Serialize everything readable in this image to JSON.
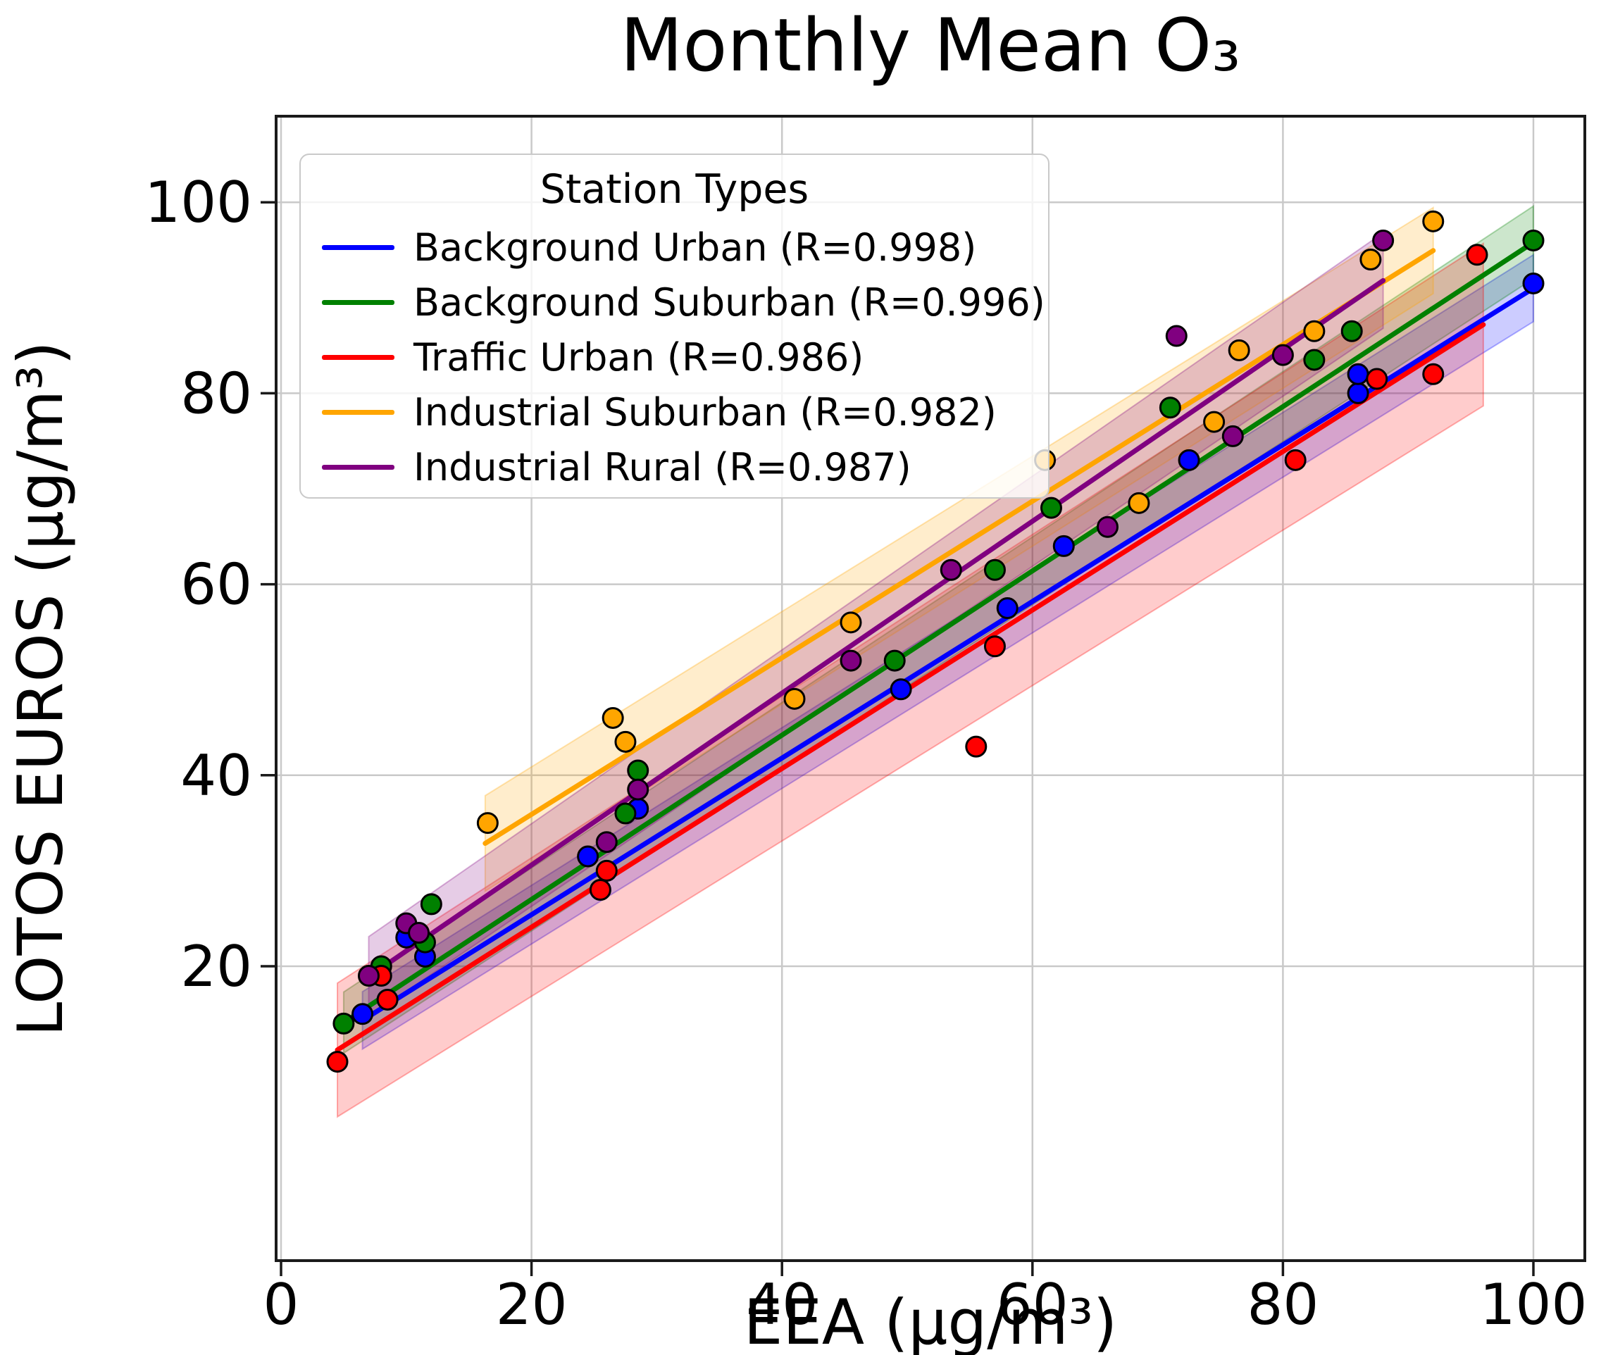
{
  "title": "Monthly Mean O₃",
  "axes": {
    "x": {
      "label": "EEA (µg/m³)",
      "ticks": [
        0,
        20,
        40,
        60,
        80,
        100
      ],
      "min": -0.4,
      "max": 104.1
    },
    "y": {
      "label": "LOTOS EUROS (µg/m³)",
      "ticks": [
        20,
        40,
        60,
        80,
        100
      ],
      "min": -10.8,
      "max": 109.0
    }
  },
  "legend": {
    "title": "Station Types",
    "items": [
      {
        "label": "Background Urban (R=0.998)",
        "color": "#0000ff"
      },
      {
        "label": "Background Suburban (R=0.996)",
        "color": "#008000"
      },
      {
        "label": "Traffic Urban (R=0.986)",
        "color": "#ff0000"
      },
      {
        "label": "Industrial Suburban (R=0.982)",
        "color": "#ffa500"
      },
      {
        "label": "Industrial Rural (R=0.987)",
        "color": "#800080"
      }
    ]
  },
  "style": {
    "grid_color": "#c9c9c9",
    "spine_color": "#1a1a1a",
    "point_edge_color": "#000000",
    "band_opacity": 0.2,
    "point_radius": 14,
    "line_width": 7
  },
  "chart_data": {
    "type": "scatter",
    "title": "Monthly Mean O₃",
    "xlabel": "EEA (µg/m³)",
    "ylabel": "LOTOS EUROS (µg/m³)",
    "xlim": [
      -0.4,
      104.1
    ],
    "ylim": [
      -10.8,
      109.0
    ],
    "grid": true,
    "legend_position": "upper left",
    "legend_title": "Station Types",
    "series": [
      {
        "name": "Background Urban",
        "R": 0.998,
        "color": "#0000ff",
        "points": [
          [
            6.5,
            15
          ],
          [
            10,
            23
          ],
          [
            11.5,
            21
          ],
          [
            24.5,
            31.5
          ],
          [
            28.5,
            36.5
          ],
          [
            49.5,
            49
          ],
          [
            58,
            57.5
          ],
          [
            62.5,
            64
          ],
          [
            72.5,
            73
          ],
          [
            86,
            80
          ],
          [
            86,
            82
          ],
          [
            100,
            91.5
          ]
        ],
        "regression": {
          "slope": 0.82,
          "intercept": 9.0,
          "x_start": 6.5,
          "x_end": 100,
          "band_left": 3.0,
          "band_right": 3.5
        }
      },
      {
        "name": "Background Suburban",
        "R": 0.996,
        "color": "#008000",
        "points": [
          [
            5,
            14
          ],
          [
            8,
            20
          ],
          [
            11.5,
            22.5
          ],
          [
            12,
            26.5
          ],
          [
            27.5,
            36
          ],
          [
            28.5,
            40.5
          ],
          [
            49,
            52
          ],
          [
            57,
            61.5
          ],
          [
            61.5,
            68
          ],
          [
            71,
            78.5
          ],
          [
            82.5,
            83.5
          ],
          [
            85.5,
            86.5
          ],
          [
            100,
            96
          ]
        ],
        "regression": {
          "slope": 0.86,
          "intercept": 9.8,
          "x_start": 5,
          "x_end": 100,
          "band_left": 3.2,
          "band_right": 3.8
        }
      },
      {
        "name": "Traffic Urban",
        "R": 0.986,
        "color": "#ff0000",
        "points": [
          [
            4.5,
            10
          ],
          [
            8,
            19
          ],
          [
            8.5,
            16.5
          ],
          [
            25.5,
            28
          ],
          [
            26,
            30
          ],
          [
            55.5,
            43
          ],
          [
            57,
            53.5
          ],
          [
            81,
            73
          ],
          [
            87.5,
            81.5
          ],
          [
            92,
            82
          ],
          [
            95.5,
            94.5
          ]
        ],
        "regression": {
          "slope": 0.83,
          "intercept": 7.5,
          "x_start": 4.5,
          "x_end": 96,
          "band_left": 7.0,
          "band_right": 8.5
        }
      },
      {
        "name": "Industrial Suburban",
        "R": 0.982,
        "color": "#ffa500",
        "points": [
          [
            16.5,
            35
          ],
          [
            26.5,
            46
          ],
          [
            27.5,
            43.5
          ],
          [
            41,
            48
          ],
          [
            45.5,
            56
          ],
          [
            61,
            73
          ],
          [
            68.5,
            68.5
          ],
          [
            74.5,
            77
          ],
          [
            76.5,
            84.5
          ],
          [
            82.5,
            86.5
          ],
          [
            87,
            94
          ],
          [
            92,
            98
          ]
        ],
        "regression": {
          "slope": 0.82,
          "intercept": 19.5,
          "x_start": 16.3,
          "x_end": 92,
          "band_left": 5.0,
          "band_right": 4.5
        }
      },
      {
        "name": "Industrial Rural",
        "R": 0.987,
        "color": "#800080",
        "points": [
          [
            7,
            19
          ],
          [
            10,
            24.5
          ],
          [
            11,
            23.5
          ],
          [
            26,
            33
          ],
          [
            28.5,
            38.5
          ],
          [
            45.5,
            52
          ],
          [
            53.5,
            61.5
          ],
          [
            66,
            66
          ],
          [
            71.5,
            86
          ],
          [
            76,
            75.5
          ],
          [
            80,
            84
          ],
          [
            88,
            96
          ]
        ],
        "regression": {
          "slope": 0.9,
          "intercept": 12.6,
          "x_start": 7,
          "x_end": 88,
          "band_left": 4.2,
          "band_right": 5.0
        }
      }
    ]
  }
}
